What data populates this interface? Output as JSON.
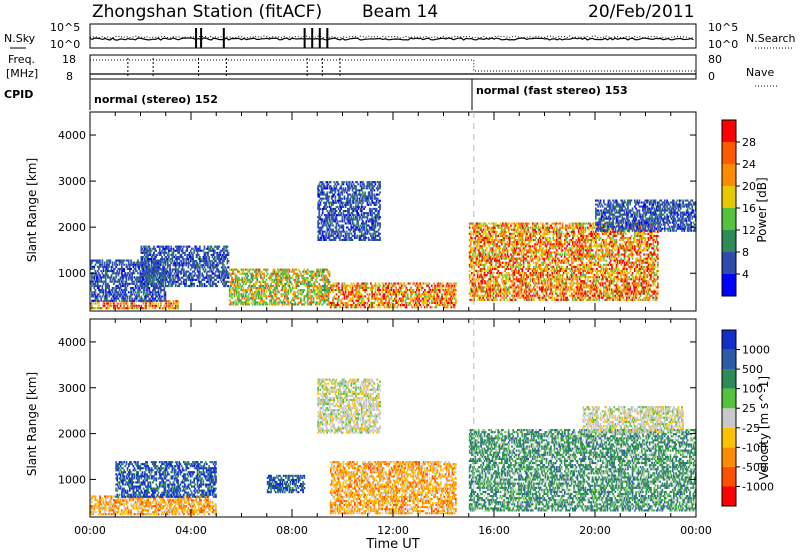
{
  "header": {
    "station": "Zhongshan Station (fitACF)",
    "beam": "Beam 14",
    "date": "20/Feb/2011"
  },
  "noise_panel": {
    "left_label": "N.Sky",
    "right_label": "N.Search",
    "y_ticks": [
      "10^5",
      "10^0"
    ]
  },
  "freq_panel": {
    "left_label_1": "Freq.",
    "left_label_2": "[MHz]",
    "right_label": "Nave",
    "left_ticks": [
      "18",
      "8"
    ],
    "right_ticks": [
      "80",
      "0"
    ]
  },
  "cpid": {
    "label": "CPID",
    "modes": [
      {
        "name": "normal (stereo) 152",
        "start_hour": 0
      },
      {
        "name": "normal (fast stereo) 153",
        "start_hour": 15.2
      }
    ]
  },
  "chart_data": [
    {
      "type": "heatmap",
      "quantity": "Power",
      "ylabel": "Slant Range [km]",
      "xlabel": "",
      "x_range_hours": [
        0,
        24
      ],
      "ylim": [
        180,
        4500
      ],
      "y_ticks": [
        1000,
        2000,
        3000,
        4000
      ],
      "colorbar": {
        "label": "Power [dB]",
        "levels": [
          4,
          8,
          12,
          16,
          20,
          24,
          28
        ],
        "colors": [
          "#0000ff",
          "#2d4da8",
          "#2e8b57",
          "#56c23c",
          "#e8c800",
          "#ff8c00",
          "#ff5a00",
          "#ff0000"
        ]
      },
      "mode_change_hour": 15.2,
      "regions": [
        {
          "h0": 0.0,
          "h1": 3.5,
          "r0": 220,
          "r1": 420,
          "value": "high"
        },
        {
          "h0": 0.0,
          "h1": 3.0,
          "r0": 380,
          "r1": 1300,
          "value": "low"
        },
        {
          "h0": 2.0,
          "h1": 5.5,
          "r0": 700,
          "r1": 1600,
          "value": "low"
        },
        {
          "h0": 5.5,
          "h1": 9.5,
          "r0": 300,
          "r1": 1100,
          "value": "mid"
        },
        {
          "h0": 9.0,
          "h1": 11.5,
          "r0": 1700,
          "r1": 3000,
          "value": "low"
        },
        {
          "h0": 9.5,
          "h1": 14.5,
          "r0": 240,
          "r1": 800,
          "value": "high"
        },
        {
          "h0": 15.0,
          "h1": 22.5,
          "r0": 400,
          "r1": 2100,
          "value": "high"
        },
        {
          "h0": 20.0,
          "h1": 24.0,
          "r0": 1900,
          "r1": 2600,
          "value": "low"
        }
      ]
    },
    {
      "type": "heatmap",
      "quantity": "Velocity",
      "ylabel": "Slant Range [km]",
      "xlabel": "Time UT",
      "x_range_hours": [
        0,
        24
      ],
      "ylim": [
        180,
        4500
      ],
      "y_ticks": [
        1000,
        2000,
        3000,
        4000
      ],
      "x_ticks": [
        "00:00",
        "04:00",
        "08:00",
        "12:00",
        "16:00",
        "20:00",
        "00:00"
      ],
      "colorbar": {
        "label": "Velocity [m s^-1]",
        "levels": [
          1000,
          500,
          100,
          25,
          -25,
          -100,
          -500,
          -1000
        ],
        "colors": [
          "#1030c8",
          "#2a5aa8",
          "#2e8b57",
          "#56c23c",
          "#c8c8c8",
          "#ffc000",
          "#ff8c00",
          "#ff5000",
          "#ff0000"
        ]
      },
      "mode_change_hour": 15.2,
      "regions": [
        {
          "h0": 0.0,
          "h1": 5.0,
          "r0": 220,
          "r1": 650,
          "value": "toward"
        },
        {
          "h0": 1.0,
          "h1": 5.0,
          "r0": 600,
          "r1": 1400,
          "value": "fast_away"
        },
        {
          "h0": 7.0,
          "h1": 8.5,
          "r0": 700,
          "r1": 1100,
          "value": "fast_away"
        },
        {
          "h0": 9.0,
          "h1": 11.5,
          "r0": 2000,
          "r1": 3200,
          "value": "near_zero"
        },
        {
          "h0": 9.5,
          "h1": 14.5,
          "r0": 240,
          "r1": 1400,
          "value": "toward"
        },
        {
          "h0": 15.0,
          "h1": 24.0,
          "r0": 300,
          "r1": 2100,
          "value": "slow_away"
        },
        {
          "h0": 19.5,
          "h1": 23.5,
          "r0": 2000,
          "r1": 2600,
          "value": "near_zero"
        }
      ]
    }
  ]
}
